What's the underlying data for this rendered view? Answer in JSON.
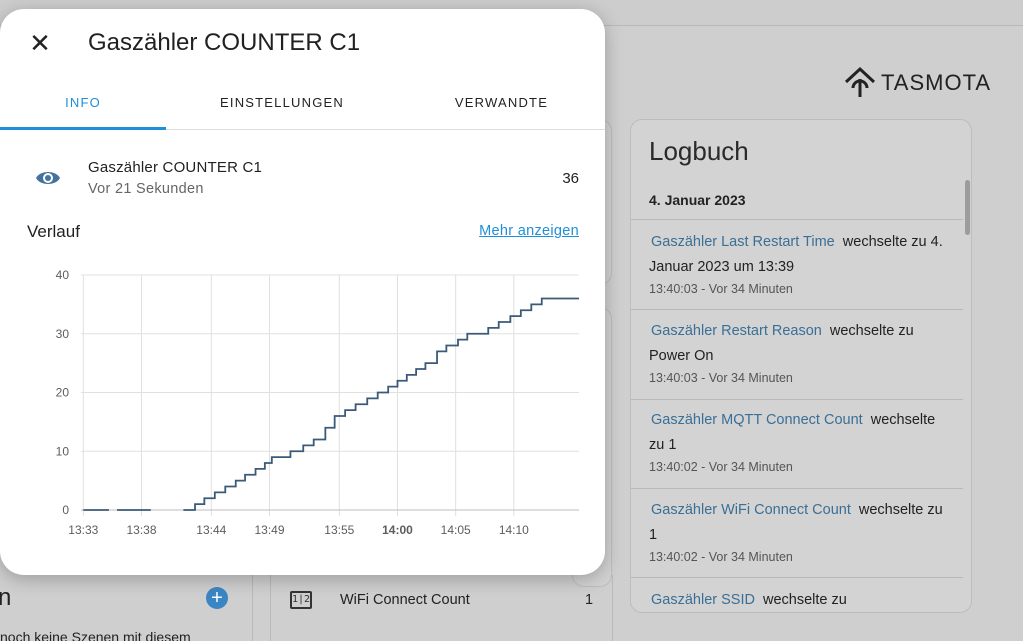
{
  "background": {
    "logo_text": "TASMOTA",
    "logbook": {
      "title": "Logbuch",
      "date": "4. Januar 2023",
      "entries": [
        {
          "entity": "Gaszähler Last Restart Time",
          "text": "wechselte zu 4. Januar 2023 um 13:39",
          "time": "13:40:03 - Vor 34 Minuten"
        },
        {
          "entity": "Gaszähler Restart Reason",
          "text": "wechselte zu Power On",
          "time": "13:40:03 - Vor 34 Minuten"
        },
        {
          "entity": "Gaszähler MQTT Connect Count",
          "text": "wechselte zu 1",
          "time": "13:40:02 - Vor 34 Minuten"
        },
        {
          "entity": "Gaszähler WiFi Connect Count",
          "text": "wechselte zu 1",
          "time": "13:40:02 - Vor 34 Minuten"
        },
        {
          "entity": "Gaszähler SSID",
          "text": "wechselte zu",
          "time": ""
        }
      ]
    },
    "left_title": "n",
    "add_icon": "plus-circle-icon",
    "left_text": "noch keine Szenen mit diesem",
    "wifi_icon": "counter-icon",
    "wifi_glyph": "1|2",
    "wifi_label": "WiFi Connect Count",
    "wifi_value": "1"
  },
  "dialog": {
    "close_icon": "close-icon",
    "title": "Gaszähler COUNTER C1",
    "tabs": [
      {
        "label": "INFO",
        "active": true
      },
      {
        "label": "EINSTELLUNGEN",
        "active": false
      },
      {
        "label": "VERWANDTE",
        "active": false
      }
    ],
    "entity": {
      "icon": "eye-icon",
      "name": "Gaszähler COUNTER C1",
      "last_changed": "Vor 21 Sekunden",
      "state": "36"
    },
    "history_title": "Verlauf",
    "more_link": "Mehr anzeigen",
    "accent_color": "#1f8fd8",
    "line_color": "#3b5a78"
  },
  "chart_data": {
    "type": "line",
    "step": true,
    "title": "",
    "xlabel": "",
    "ylabel": "",
    "ylim": [
      0,
      40
    ],
    "yticks": [
      0,
      10,
      20,
      30,
      40
    ],
    "xticks": [
      {
        "label": "13:33",
        "minute": 813,
        "bold": false
      },
      {
        "label": "13:38",
        "minute": 818,
        "bold": false
      },
      {
        "label": "13:44",
        "minute": 824,
        "bold": false
      },
      {
        "label": "13:49",
        "minute": 829,
        "bold": false
      },
      {
        "label": "13:55",
        "minute": 835,
        "bold": false
      },
      {
        "label": "14:00",
        "minute": 840,
        "bold": true
      },
      {
        "label": "14:05",
        "minute": 845,
        "bold": false
      },
      {
        "label": "14:10",
        "minute": 850,
        "bold": false
      }
    ],
    "xlim": [
      812.8,
      855.6
    ],
    "grid": true,
    "series": [
      {
        "name": "",
        "segments": [
          {
            "x": [
              813.0,
              815.2
            ],
            "y": [
              0,
              0
            ]
          },
          {
            "x": [
              815.9,
              818.8
            ],
            "y": [
              0,
              0
            ]
          },
          {
            "x": [
              821.6,
              822.6,
              823.4,
              824.3,
              825.2,
              826.1,
              826.9,
              827.8,
              828.6,
              829.2,
              830.0,
              830.8,
              831.9,
              832.8,
              833.8,
              834.6,
              835.5,
              836.4,
              837.4,
              838.3,
              839.2,
              840.0,
              840.8,
              841.6,
              842.4,
              843.4,
              844.2,
              845.2,
              846.0,
              846.9,
              847.8,
              848.7,
              849.7,
              850.6,
              851.5,
              852.4,
              853.3,
              854.3,
              855.2,
              855.6
            ],
            "y": [
              0,
              1,
              2,
              3,
              4,
              5,
              6,
              7,
              8,
              9,
              9,
              10,
              11,
              12,
              14,
              16,
              17,
              18,
              19,
              20,
              21,
              22,
              23,
              24,
              25,
              27,
              28,
              29,
              30,
              30,
              31,
              32,
              33,
              34,
              35,
              36,
              36,
              36,
              36,
              36
            ]
          }
        ]
      }
    ]
  }
}
